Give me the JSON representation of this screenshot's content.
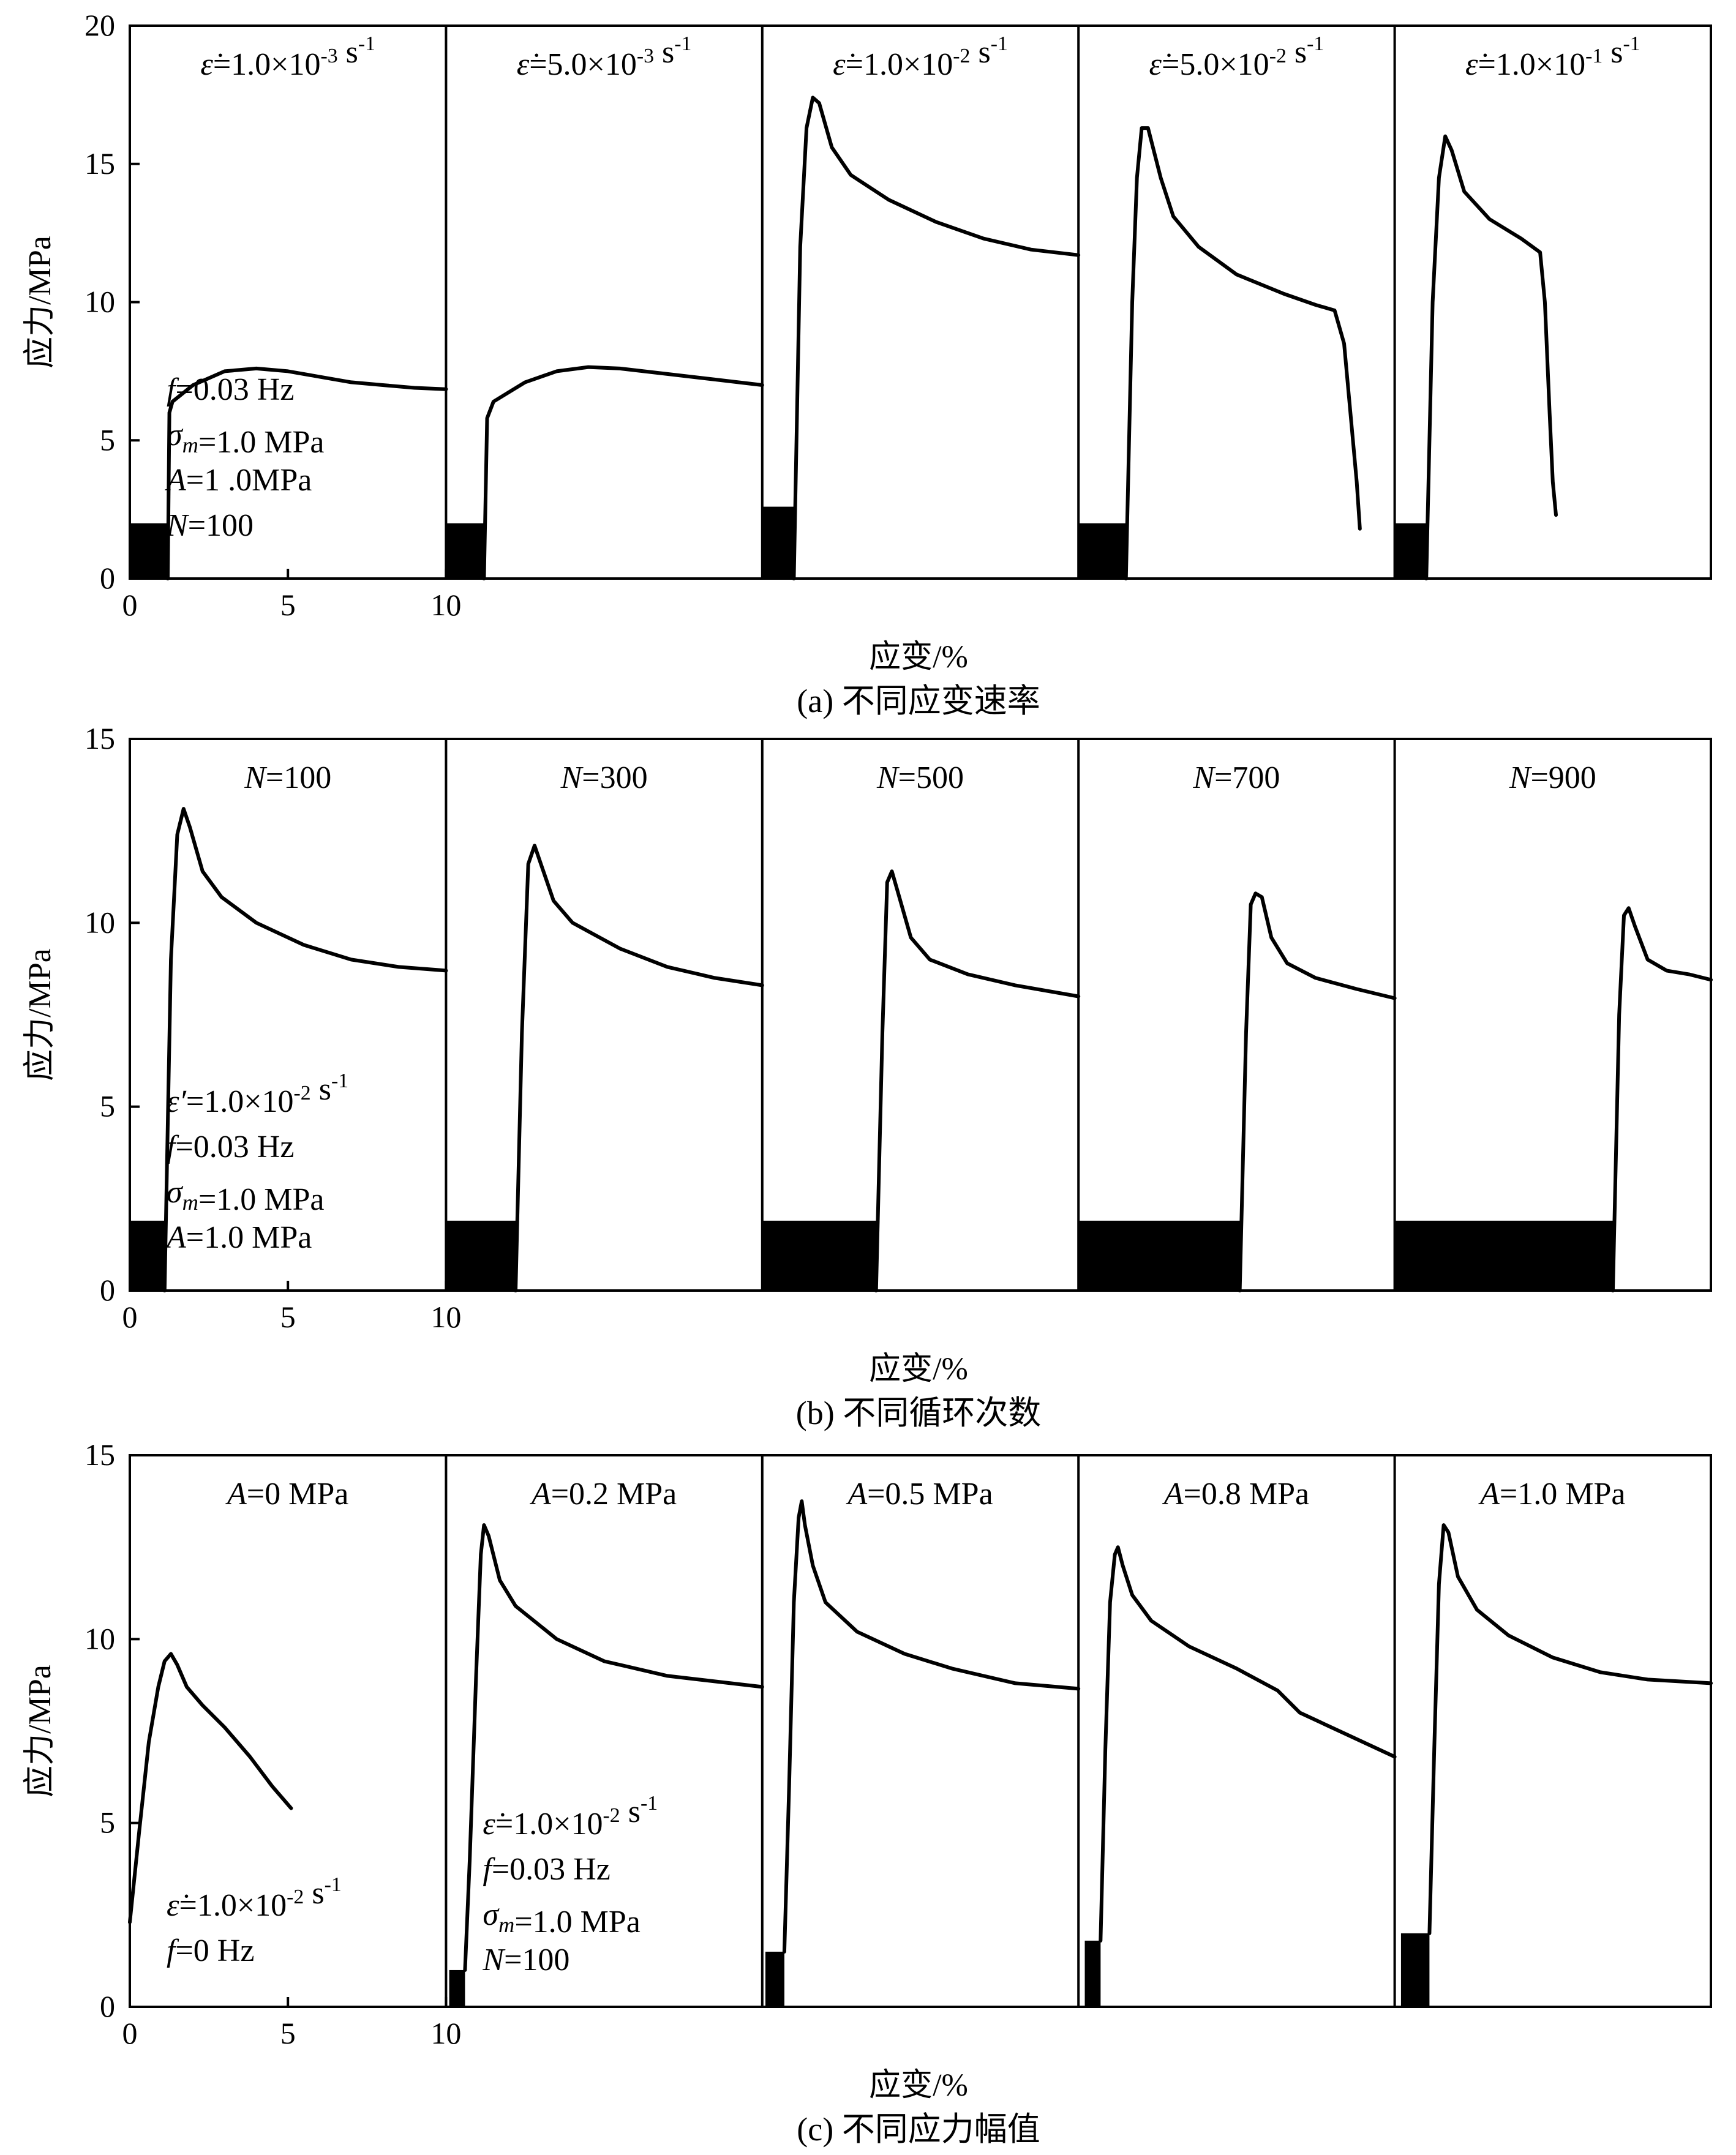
{
  "chart_data": [
    {
      "id": "a",
      "type": "line",
      "caption": "(a) 不同应变速率",
      "xlabel": "应变/%",
      "ylabel": "应力/MPa",
      "ylim": [
        0,
        20
      ],
      "yticks": [
        "0",
        "5",
        "10",
        "15",
        "20"
      ],
      "xticks": [
        "0",
        "5",
        "10"
      ],
      "panel_xlim": [
        0,
        10
      ],
      "annotation": [
        "f=0.03 Hz",
        "σm=1.0 MPa",
        "A=1 .0MPa",
        "N=100"
      ],
      "series": [
        {
          "name": "ε̇=1.0×10-3 s-1",
          "block": {
            "x0": 0,
            "x1": 1.2,
            "y": 2.0
          },
          "points": [
            [
              1.2,
              0
            ],
            [
              1.25,
              6.0
            ],
            [
              1.35,
              6.4
            ],
            [
              2,
              7.0
            ],
            [
              3,
              7.5
            ],
            [
              4,
              7.6
            ],
            [
              5,
              7.5
            ],
            [
              6,
              7.3
            ],
            [
              7,
              7.1
            ],
            [
              8,
              7.0
            ],
            [
              9,
              6.9
            ],
            [
              10,
              6.85
            ]
          ]
        },
        {
          "name": "ε̇=5.0×10-3 s-1",
          "block": {
            "x0": 0,
            "x1": 1.2,
            "y": 2.0
          },
          "points": [
            [
              1.2,
              0
            ],
            [
              1.3,
              5.8
            ],
            [
              1.5,
              6.4
            ],
            [
              2.5,
              7.1
            ],
            [
              3.5,
              7.5
            ],
            [
              4.5,
              7.65
            ],
            [
              5.5,
              7.6
            ],
            [
              7,
              7.4
            ],
            [
              8.5,
              7.2
            ],
            [
              10,
              7.0
            ]
          ]
        },
        {
          "name": "ε̇=1.0×10-2 s-1",
          "block": {
            "x0": 0,
            "x1": 1.0,
            "y": 2.6
          },
          "points": [
            [
              1.0,
              0
            ],
            [
              1.2,
              12
            ],
            [
              1.4,
              16.3
            ],
            [
              1.6,
              17.4
            ],
            [
              1.8,
              17.2
            ],
            [
              2.2,
              15.6
            ],
            [
              2.8,
              14.6
            ],
            [
              4,
              13.7
            ],
            [
              5.5,
              12.9
            ],
            [
              7,
              12.3
            ],
            [
              8.5,
              11.9
            ],
            [
              10,
              11.7
            ]
          ]
        },
        {
          "name": "ε̇=5.0×10-2 s-1",
          "block": {
            "x0": 0,
            "x1": 1.5,
            "y": 2.0
          },
          "points": [
            [
              1.5,
              0
            ],
            [
              1.7,
              10
            ],
            [
              1.85,
              14.5
            ],
            [
              2.0,
              16.3
            ],
            [
              2.2,
              16.3
            ],
            [
              2.6,
              14.5
            ],
            [
              3,
              13.1
            ],
            [
              3.8,
              12
            ],
            [
              5,
              11.0
            ],
            [
              6.5,
              10.3
            ],
            [
              7.5,
              9.9
            ],
            [
              8.1,
              9.7
            ],
            [
              8.4,
              8.5
            ],
            [
              8.6,
              6.0
            ],
            [
              8.8,
              3.5
            ],
            [
              8.9,
              1.8
            ]
          ]
        },
        {
          "name": "ε̇=1.0×10-1 s-1",
          "block": {
            "x0": 0,
            "x1": 1.0,
            "y": 2.0
          },
          "points": [
            [
              1.0,
              0
            ],
            [
              1.2,
              10
            ],
            [
              1.4,
              14.5
            ],
            [
              1.6,
              16.0
            ],
            [
              1.8,
              15.5
            ],
            [
              2.2,
              14.0
            ],
            [
              3,
              13.0
            ],
            [
              4,
              12.3
            ],
            [
              4.6,
              11.8
            ],
            [
              4.75,
              10
            ],
            [
              4.9,
              6
            ],
            [
              5.0,
              3.5
            ],
            [
              5.1,
              2.3
            ]
          ]
        }
      ]
    },
    {
      "id": "b",
      "type": "line",
      "caption": "(b) 不同循环次数",
      "xlabel": "应变/%",
      "ylabel": "应力/MPa",
      "ylim": [
        0,
        15
      ],
      "yticks": [
        "0",
        "5",
        "10",
        "15"
      ],
      "xticks": [
        "0",
        "5",
        "10"
      ],
      "panel_xlim": [
        0,
        10
      ],
      "annotation": [
        "ε′=1.0×10-2 s-1",
        "f=0.03 Hz",
        "σm=1.0 MPa",
        "A=1.0 MPa"
      ],
      "series": [
        {
          "name": "N=100",
          "block": {
            "x0": 0,
            "x1": 1.1,
            "y": 1.9
          },
          "points": [
            [
              1.1,
              0
            ],
            [
              1.3,
              9
            ],
            [
              1.5,
              12.4
            ],
            [
              1.7,
              13.1
            ],
            [
              1.9,
              12.6
            ],
            [
              2.3,
              11.4
            ],
            [
              2.9,
              10.7
            ],
            [
              4,
              10.0
            ],
            [
              5.5,
              9.4
            ],
            [
              7,
              9.0
            ],
            [
              8.5,
              8.8
            ],
            [
              10,
              8.7
            ]
          ]
        },
        {
          "name": "N=300",
          "block": {
            "x0": 0,
            "x1": 2.2,
            "y": 1.9
          },
          "points": [
            [
              2.2,
              0
            ],
            [
              2.4,
              7
            ],
            [
              2.6,
              11.6
            ],
            [
              2.8,
              12.1
            ],
            [
              3.0,
              11.6
            ],
            [
              3.4,
              10.6
            ],
            [
              4,
              10.0
            ],
            [
              5.5,
              9.3
            ],
            [
              7,
              8.8
            ],
            [
              8.5,
              8.5
            ],
            [
              10,
              8.3
            ]
          ]
        },
        {
          "name": "N=500",
          "block": {
            "x0": 0,
            "x1": 3.6,
            "y": 1.9
          },
          "points": [
            [
              3.6,
              0
            ],
            [
              3.8,
              7
            ],
            [
              3.95,
              11.1
            ],
            [
              4.1,
              11.4
            ],
            [
              4.3,
              10.8
            ],
            [
              4.7,
              9.6
            ],
            [
              5.3,
              9.0
            ],
            [
              6.5,
              8.6
            ],
            [
              8,
              8.3
            ],
            [
              10,
              8.0
            ]
          ]
        },
        {
          "name": "N=700",
          "block": {
            "x0": 0,
            "x1": 5.1,
            "y": 1.9
          },
          "points": [
            [
              5.1,
              0
            ],
            [
              5.3,
              7
            ],
            [
              5.45,
              10.5
            ],
            [
              5.6,
              10.8
            ],
            [
              5.8,
              10.7
            ],
            [
              6.1,
              9.6
            ],
            [
              6.6,
              8.9
            ],
            [
              7.5,
              8.5
            ],
            [
              8.8,
              8.2
            ],
            [
              10,
              7.95
            ]
          ]
        },
        {
          "name": "N=900",
          "block": {
            "x0": 0,
            "x1": 6.9,
            "y": 1.9
          },
          "points": [
            [
              6.9,
              0
            ],
            [
              7.1,
              7.5
            ],
            [
              7.25,
              10.2
            ],
            [
              7.4,
              10.4
            ],
            [
              7.6,
              9.9
            ],
            [
              8,
              9.0
            ],
            [
              8.6,
              8.7
            ],
            [
              9.3,
              8.6
            ],
            [
              10,
              8.45
            ]
          ]
        }
      ]
    },
    {
      "id": "c",
      "type": "line",
      "caption": "(c) 不同应力幅值",
      "xlabel": "应变/%",
      "ylabel": "应力/MPa",
      "ylim": [
        0,
        15
      ],
      "yticks": [
        "0",
        "5",
        "10",
        "15"
      ],
      "xticks": [
        "0",
        "5",
        "10"
      ],
      "panel_xlim": [
        0,
        10
      ],
      "annotation_panel0": [
        "ε̇=1.0×10-2 s-1",
        "f=0 Hz"
      ],
      "annotation_panel1": [
        "ε̇=1.0×10-2 s-1",
        "f=0.03 Hz",
        "σm=1.0 MPa",
        "N=100"
      ],
      "series": [
        {
          "name": "A=0 MPa",
          "block": null,
          "points": [
            [
              0,
              2.3
            ],
            [
              0.3,
              4.8
            ],
            [
              0.6,
              7.2
            ],
            [
              0.9,
              8.7
            ],
            [
              1.1,
              9.4
            ],
            [
              1.3,
              9.6
            ],
            [
              1.5,
              9.3
            ],
            [
              1.8,
              8.7
            ],
            [
              2.3,
              8.2
            ],
            [
              3,
              7.6
            ],
            [
              3.8,
              6.8
            ],
            [
              4.5,
              6.0
            ],
            [
              5.1,
              5.4
            ]
          ]
        },
        {
          "name": "A=0.2 MPa",
          "block": {
            "x0": 0.1,
            "x1": 0.6,
            "y": 1.0
          },
          "points": [
            [
              0.6,
              1.0
            ],
            [
              0.75,
              4
            ],
            [
              0.95,
              9
            ],
            [
              1.1,
              12.3
            ],
            [
              1.2,
              13.1
            ],
            [
              1.35,
              12.8
            ],
            [
              1.7,
              11.6
            ],
            [
              2.2,
              10.9
            ],
            [
              3.5,
              10.0
            ],
            [
              5,
              9.4
            ],
            [
              7,
              9.0
            ],
            [
              8.5,
              8.85
            ],
            [
              10,
              8.7
            ]
          ]
        },
        {
          "name": "A=0.5 MPa",
          "block": {
            "x0": 0.1,
            "x1": 0.7,
            "y": 1.5
          },
          "points": [
            [
              0.7,
              1.5
            ],
            [
              0.85,
              6
            ],
            [
              1.0,
              11
            ],
            [
              1.15,
              13.3
            ],
            [
              1.25,
              13.75
            ],
            [
              1.35,
              13.1
            ],
            [
              1.6,
              12.0
            ],
            [
              2.0,
              11.0
            ],
            [
              3.0,
              10.2
            ],
            [
              4.5,
              9.6
            ],
            [
              6,
              9.2
            ],
            [
              8,
              8.8
            ],
            [
              10,
              8.65
            ]
          ]
        },
        {
          "name": "A=0.8 MPa",
          "block": {
            "x0": 0.2,
            "x1": 0.7,
            "y": 1.8
          },
          "points": [
            [
              0.7,
              1.8
            ],
            [
              0.85,
              7
            ],
            [
              1.0,
              11
            ],
            [
              1.15,
              12.3
            ],
            [
              1.25,
              12.5
            ],
            [
              1.4,
              12.0
            ],
            [
              1.7,
              11.2
            ],
            [
              2.3,
              10.5
            ],
            [
              3.5,
              9.8
            ],
            [
              5,
              9.2
            ],
            [
              6.3,
              8.6
            ],
            [
              7,
              8.0
            ],
            [
              8.5,
              7.4
            ],
            [
              10,
              6.8
            ]
          ]
        },
        {
          "name": "A=1.0 MPa",
          "block": {
            "x0": 0.2,
            "x1": 1.1,
            "y": 2.0
          },
          "points": [
            [
              1.1,
              2.0
            ],
            [
              1.25,
              7
            ],
            [
              1.4,
              11.5
            ],
            [
              1.55,
              13.1
            ],
            [
              1.7,
              12.9
            ],
            [
              2.0,
              11.7
            ],
            [
              2.6,
              10.8
            ],
            [
              3.6,
              10.1
            ],
            [
              5,
              9.5
            ],
            [
              6.5,
              9.1
            ],
            [
              8,
              8.9
            ],
            [
              10,
              8.8
            ]
          ]
        }
      ]
    }
  ]
}
